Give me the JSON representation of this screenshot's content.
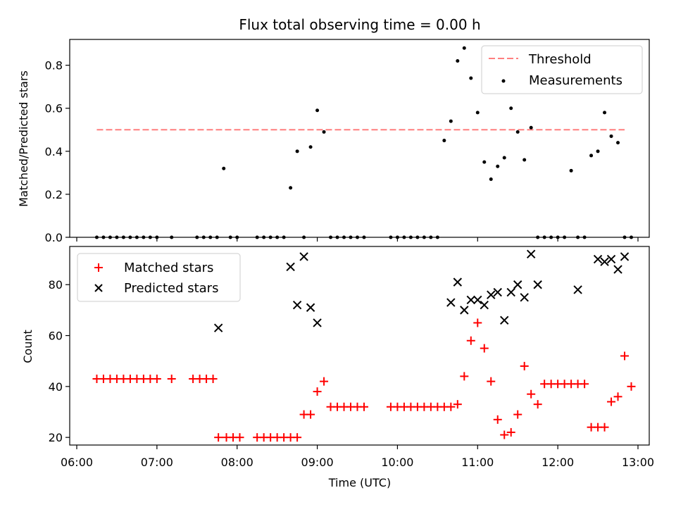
{
  "chart_data": [
    {
      "type": "scatter",
      "title": "Flux total observing time = 0.00 h",
      "xlabel": "",
      "ylabel": "Matched/Predicted stars",
      "ylim": [
        0,
        0.92
      ],
      "yticks": [
        "0.0",
        "0.2",
        "0.4",
        "0.6",
        "0.8"
      ],
      "ytick_values": [
        0,
        0.2,
        0.4,
        0.6,
        0.8
      ],
      "xlim": [
        "06:00",
        "13:00"
      ],
      "grid": false,
      "legend_position": "top-right",
      "threshold": {
        "name": "Threshold",
        "y": 0.5,
        "x_start": "06:15",
        "x_end": "12:50",
        "color": "#ff7f7f"
      },
      "series": [
        {
          "name": "Measurements",
          "color": "#000000",
          "x": [
            "06:15",
            "06:20",
            "06:25",
            "06:30",
            "06:35",
            "06:40",
            "06:45",
            "06:50",
            "06:55",
            "07:00",
            "07:11",
            "07:30",
            "07:35",
            "07:40",
            "07:45",
            "07:50",
            "07:55",
            "08:00",
            "08:15",
            "08:20",
            "08:25",
            "08:30",
            "08:35",
            "08:40",
            "08:45",
            "08:50",
            "08:55",
            "09:00",
            "09:05",
            "09:10",
            "09:15",
            "09:20",
            "09:25",
            "09:30",
            "09:35",
            "09:55",
            "10:00",
            "10:05",
            "10:10",
            "10:15",
            "10:20",
            "10:25",
            "10:30",
            "10:35",
            "10:40",
            "10:45",
            "10:50",
            "10:55",
            "11:00",
            "11:05",
            "11:10",
            "11:15",
            "11:20",
            "11:25",
            "11:30",
            "11:35",
            "11:40",
            "11:45",
            "11:50",
            "11:55",
            "12:00",
            "12:05",
            "12:10",
            "12:15",
            "12:20",
            "12:25",
            "12:30",
            "12:35",
            "12:40",
            "12:45",
            "12:50",
            "12:55"
          ],
          "y": [
            0,
            0,
            0,
            0,
            0,
            0,
            0,
            0,
            0,
            0,
            0,
            0,
            0,
            0,
            0,
            0.32,
            0,
            0,
            0,
            0,
            0,
            0,
            0,
            0.23,
            0.4,
            0,
            0.42,
            0.59,
            0.49,
            0,
            0,
            0,
            0,
            0,
            0,
            0,
            0,
            0,
            0,
            0,
            0,
            0,
            0,
            0.45,
            0.54,
            0.82,
            0.88,
            0.74,
            0.58,
            0.35,
            0.27,
            0.33,
            0.37,
            0.6,
            0.49,
            0.36,
            0.51,
            0,
            0,
            0,
            0,
            0,
            0.31,
            0,
            0,
            0.38,
            0.4,
            0.58,
            0.47,
            0.44,
            0,
            0
          ]
        }
      ]
    },
    {
      "type": "scatter",
      "title": "",
      "xlabel": "Time (UTC)",
      "ylabel": "Count",
      "ylim": [
        17,
        95
      ],
      "yticks": [
        "20",
        "40",
        "60",
        "80"
      ],
      "ytick_values": [
        20,
        40,
        60,
        80
      ],
      "xlim": [
        "06:00",
        "13:00"
      ],
      "xticks": [
        "06:00",
        "07:00",
        "08:00",
        "09:00",
        "10:00",
        "11:00",
        "12:00",
        "13:00"
      ],
      "grid": false,
      "legend_position": "top-left",
      "series": [
        {
          "name": "Matched stars",
          "marker": "+",
          "color": "#ff0000",
          "x": [
            "06:15",
            "06:20",
            "06:25",
            "06:30",
            "06:35",
            "06:40",
            "06:45",
            "06:50",
            "06:55",
            "07:00",
            "07:11",
            "07:27",
            "07:32",
            "07:37",
            "07:42",
            "07:46",
            "07:52",
            "07:57",
            "08:02",
            "08:15",
            "08:20",
            "08:25",
            "08:30",
            "08:35",
            "08:40",
            "08:45",
            "08:50",
            "08:55",
            "09:00",
            "09:05",
            "09:10",
            "09:15",
            "09:20",
            "09:25",
            "09:30",
            "09:35",
            "09:55",
            "10:00",
            "10:05",
            "10:10",
            "10:15",
            "10:20",
            "10:25",
            "10:30",
            "10:35",
            "10:40",
            "10:45",
            "10:50",
            "10:55",
            "11:00",
            "11:05",
            "11:10",
            "11:15",
            "11:20",
            "11:25",
            "11:30",
            "11:35",
            "11:40",
            "11:45",
            "11:50",
            "11:55",
            "12:00",
            "12:05",
            "12:10",
            "12:15",
            "12:20",
            "12:25",
            "12:30",
            "12:35",
            "12:40",
            "12:45",
            "12:50",
            "12:55"
          ],
          "y": [
            43,
            43,
            43,
            43,
            43,
            43,
            43,
            43,
            43,
            43,
            43,
            43,
            43,
            43,
            43,
            20,
            20,
            20,
            20,
            20,
            20,
            20,
            20,
            20,
            20,
            20,
            29,
            29,
            38,
            42,
            32,
            32,
            32,
            32,
            32,
            32,
            32,
            32,
            32,
            32,
            32,
            32,
            32,
            32,
            32,
            32,
            33,
            44,
            58,
            65,
            55,
            42,
            27,
            21,
            22,
            29,
            48,
            37,
            33,
            41,
            41,
            41,
            41,
            41,
            41,
            41,
            24,
            24,
            24,
            34,
            36,
            52,
            40
          ]
        },
        {
          "name": "Predicted stars",
          "marker": "x",
          "color": "#000000",
          "x": [
            "07:46",
            "08:40",
            "08:45",
            "08:50",
            "08:55",
            "09:00",
            "10:40",
            "10:45",
            "10:50",
            "10:55",
            "11:00",
            "11:05",
            "11:10",
            "11:15",
            "11:20",
            "11:25",
            "11:30",
            "11:35",
            "11:40",
            "11:45",
            "12:15",
            "12:30",
            "12:35",
            "12:40",
            "12:45",
            "12:50"
          ],
          "y": [
            63,
            87,
            72,
            91,
            71,
            65,
            73,
            81,
            70,
            74,
            74,
            72,
            76,
            77,
            66,
            77,
            80,
            75,
            92,
            80,
            78,
            90,
            89,
            90,
            86,
            91
          ]
        }
      ]
    }
  ]
}
